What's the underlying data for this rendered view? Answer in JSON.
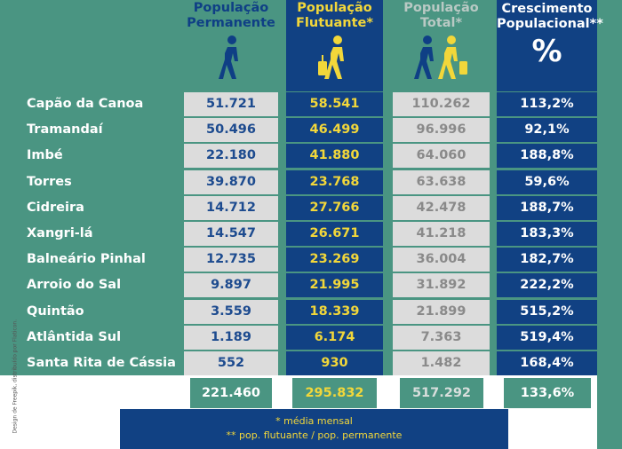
{
  "headers": {
    "permanente": [
      "População",
      "Permanente"
    ],
    "flutuante": [
      "População",
      "Flutuante*"
    ],
    "total": [
      "População",
      "Total*"
    ],
    "crescimento": [
      "Crescimento",
      "Populacional**"
    ],
    "percent_symbol": "%"
  },
  "rows": [
    {
      "city": "Capão da Canoa",
      "permanente": "51.721",
      "flutuante": "58.541",
      "total": "110.262",
      "crescimento": "113,2%"
    },
    {
      "city": "Tramandaí",
      "permanente": "50.496",
      "flutuante": "46.499",
      "total": "96.996",
      "crescimento": "92,1%"
    },
    {
      "city": "Imbé",
      "permanente": "22.180",
      "flutuante": "41.880",
      "total": "64.060",
      "crescimento": "188,8%"
    },
    {
      "city": "Torres",
      "permanente": "39.870",
      "flutuante": "23.768",
      "total": "63.638",
      "crescimento": "59,6%"
    },
    {
      "city": "Cidreira",
      "permanente": "14.712",
      "flutuante": "27.766",
      "total": "42.478",
      "crescimento": "188,7%"
    },
    {
      "city": "Xangri-lá",
      "permanente": "14.547",
      "flutuante": "26.671",
      "total": "41.218",
      "crescimento": "183,3%"
    },
    {
      "city": "Balneário Pinhal",
      "permanente": "12.735",
      "flutuante": "23.269",
      "total": "36.004",
      "crescimento": "182,7%"
    },
    {
      "city": "Arroio do Sal",
      "permanente": "9.897",
      "flutuante": "21.995",
      "total": "31.892",
      "crescimento": "222,2%"
    },
    {
      "city": "Quintão",
      "permanente": "3.559",
      "flutuante": "18.339",
      "total": "21.899",
      "crescimento": "515,2%"
    },
    {
      "city": "Atlântida Sul",
      "permanente": "1.189",
      "flutuante": "6.174",
      "total": "7.363",
      "crescimento": "519,4%"
    },
    {
      "city": "Santa Rita de Cássia",
      "permanente": "552",
      "flutuante": "930",
      "total": "1.482",
      "crescimento": "168,4%"
    }
  ],
  "totals": {
    "permanente": "221.460",
    "flutuante": "295.832",
    "total": "517.292",
    "crescimento": "133,6%"
  },
  "footnotes": [
    "* média mensal",
    "** pop. flutuante / pop. permanente"
  ],
  "credit": "Design de Freepik, distribuído por Flaticon.",
  "icons": {
    "permanente": "walking-person-icon",
    "flutuante": "traveler-with-suitcase-icon",
    "total": "walking-and-traveler-icon"
  },
  "colors": {
    "teal": "#4a9582",
    "navy": "#114183",
    "gray": "#dcdcdc",
    "yellow": "#f2d73a",
    "blue_text": "#1d4b8f"
  }
}
